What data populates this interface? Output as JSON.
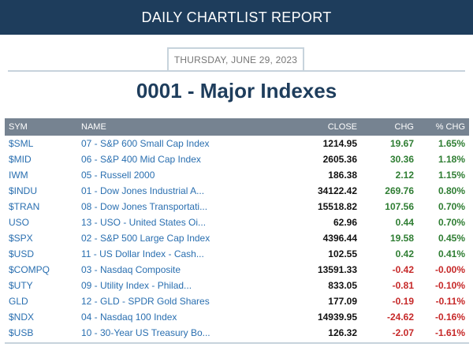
{
  "header": {
    "title": "DAILY CHARTLIST REPORT"
  },
  "report": {
    "date": "THURSDAY, JUNE 29, 2023",
    "title": "0001 - Major Indexes"
  },
  "table": {
    "columns": {
      "sym": "SYM",
      "name": "NAME",
      "close": "CLOSE",
      "chg": "CHG",
      "pct": "% CHG"
    },
    "rows": [
      {
        "sym": "$SML",
        "name": "07 - S&P 600 Small Cap Index",
        "close": "1214.95",
        "chg": "19.67",
        "pct": "1.65%",
        "dir": "pos"
      },
      {
        "sym": "$MID",
        "name": "06 - S&P 400 Mid Cap Index",
        "close": "2605.36",
        "chg": "30.36",
        "pct": "1.18%",
        "dir": "pos"
      },
      {
        "sym": "IWM",
        "name": "05 - Russell 2000",
        "close": "186.38",
        "chg": "2.12",
        "pct": "1.15%",
        "dir": "pos"
      },
      {
        "sym": "$INDU",
        "name": "01 - Dow Jones Industrial A...",
        "close": "34122.42",
        "chg": "269.76",
        "pct": "0.80%",
        "dir": "pos"
      },
      {
        "sym": "$TRAN",
        "name": "08 - Dow Jones Transportati...",
        "close": "15518.82",
        "chg": "107.56",
        "pct": "0.70%",
        "dir": "pos"
      },
      {
        "sym": "USO",
        "name": "13 - USO - United States Oi...",
        "close": "62.96",
        "chg": "0.44",
        "pct": "0.70%",
        "dir": "pos"
      },
      {
        "sym": "$SPX",
        "name": "02 - S&P 500 Large Cap Index",
        "close": "4396.44",
        "chg": "19.58",
        "pct": "0.45%",
        "dir": "pos"
      },
      {
        "sym": "$USD",
        "name": "11 - US Dollar Index - Cash...",
        "close": "102.55",
        "chg": "0.42",
        "pct": "0.41%",
        "dir": "pos"
      },
      {
        "sym": "$COMPQ",
        "name": "03 - Nasdaq Composite",
        "close": "13591.33",
        "chg": "-0.42",
        "pct": "-0.00%",
        "dir": "neg"
      },
      {
        "sym": "$UTY",
        "name": "09 - Utility Index - Philad...",
        "close": "833.05",
        "chg": "-0.81",
        "pct": "-0.10%",
        "dir": "neg"
      },
      {
        "sym": "GLD",
        "name": "12 - GLD - SPDR Gold Shares",
        "close": "177.09",
        "chg": "-0.19",
        "pct": "-0.11%",
        "dir": "neg"
      },
      {
        "sym": "$NDX",
        "name": "04 - Nasdaq 100 Index",
        "close": "14939.95",
        "chg": "-24.62",
        "pct": "-0.16%",
        "dir": "neg"
      },
      {
        "sym": "$USB",
        "name": "10 - 30-Year US Treasury Bo...",
        "close": "126.32",
        "chg": "-2.07",
        "pct": "-1.61%",
        "dir": "neg"
      }
    ]
  },
  "colors": {
    "header_bg": "#1e3d5c",
    "table_header_bg": "#768391",
    "link": "#2a6fb0",
    "positive": "#2e7d32",
    "negative": "#c62828"
  }
}
